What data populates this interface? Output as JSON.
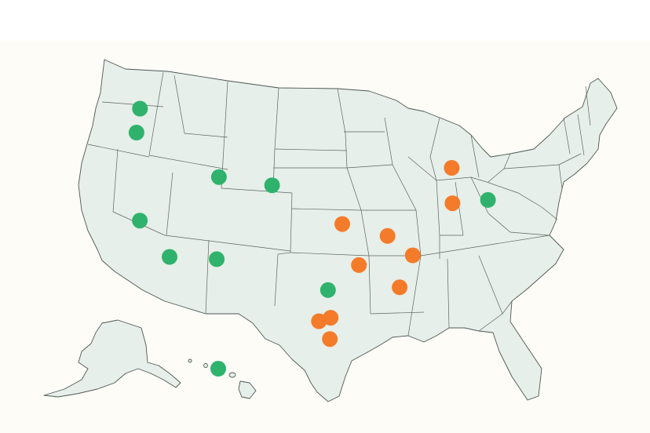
{
  "map": {
    "colors": {
      "land": "#e6efe9",
      "border": "#4d5752",
      "background": "#fdfcf7",
      "green_marker": "#2fb36c",
      "orange_marker": "#f47b2a"
    },
    "markers": [
      {
        "id": "seattle",
        "lon": -122.3,
        "lat": 47.6,
        "color": "green"
      },
      {
        "id": "portland",
        "lon": -122.7,
        "lat": 45.5,
        "color": "green"
      },
      {
        "id": "bay-area",
        "lon": -122.1,
        "lat": 37.6,
        "color": "green"
      },
      {
        "id": "los-angeles",
        "lon": -118.2,
        "lat": 34.05,
        "color": "green"
      },
      {
        "id": "phoenix",
        "lon": -112.1,
        "lat": 33.45,
        "color": "green"
      },
      {
        "id": "salt-lake-city",
        "lon": -111.9,
        "lat": 40.76,
        "color": "green"
      },
      {
        "id": "denver",
        "lon": -104.99,
        "lat": 39.74,
        "color": "green"
      },
      {
        "id": "austin",
        "lon": -97.74,
        "lat": 30.27,
        "color": "green"
      },
      {
        "id": "washington-dc",
        "lon": -77.03,
        "lat": 38.9,
        "color": "green"
      },
      {
        "id": "hawaii",
        "lon": -157.8,
        "lat": 21.3,
        "color": "green"
      },
      {
        "id": "ohio-north",
        "lon": -81.7,
        "lat": 41.5,
        "color": "orange"
      },
      {
        "id": "west-virginia",
        "lon": -81.63,
        "lat": 38.35,
        "color": "orange"
      },
      {
        "id": "oklahoma-east",
        "lon": -95.9,
        "lat": 36.15,
        "color": "orange"
      },
      {
        "id": "memphis",
        "lon": -90.05,
        "lat": 35.15,
        "color": "orange"
      },
      {
        "id": "shreveport",
        "lon": -93.75,
        "lat": 32.5,
        "color": "orange"
      },
      {
        "id": "alabama",
        "lon": -86.8,
        "lat": 33.5,
        "color": "orange"
      },
      {
        "id": "gulf-coast-ms",
        "lon": -88.5,
        "lat": 30.6,
        "color": "orange"
      },
      {
        "id": "corpus-christi",
        "lon": -97.4,
        "lat": 27.8,
        "color": "orange"
      },
      {
        "id": "south-texas-west",
        "lon": -98.9,
        "lat": 27.5,
        "color": "orange"
      },
      {
        "id": "brownsville",
        "lon": -97.5,
        "lat": 25.9,
        "color": "orange"
      }
    ]
  }
}
